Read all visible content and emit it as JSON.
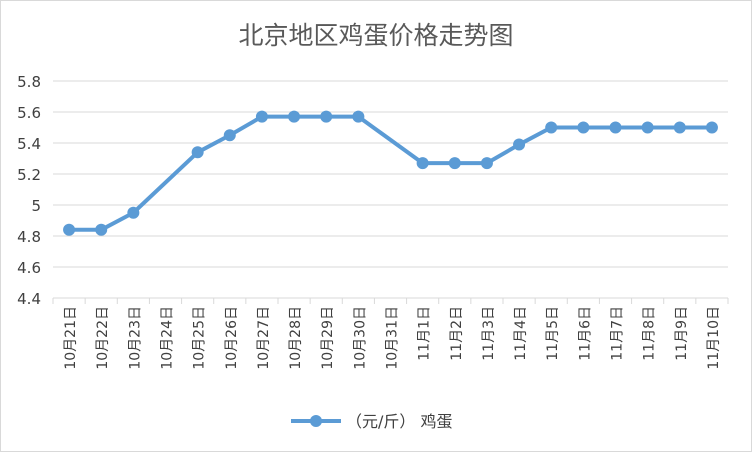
{
  "chart_data": {
    "type": "line",
    "title": "北京地区鸡蛋价格走势图",
    "xlabel": "",
    "ylabel": "",
    "ylim": [
      4.4,
      5.8
    ],
    "yticks": [
      "4.4",
      "4.6",
      "4.8",
      "5",
      "5.2",
      "5.4",
      "5.6",
      "5.8"
    ],
    "grid": true,
    "legend_position": "bottom",
    "categories": [
      "10月21日",
      "10月22日",
      "10月23日",
      "10月24日",
      "10月25日",
      "10月26日",
      "10月27日",
      "10月28日",
      "10月29日",
      "10月30日",
      "10月31日",
      "11月1日",
      "11月2日",
      "11月3日",
      "11月4日",
      "11月5日",
      "11月6日",
      "11月7日",
      "11月8日",
      "11月9日",
      "11月10日"
    ],
    "series": [
      {
        "name": "（元/斤） 鸡蛋",
        "color": "#5b9bd5",
        "values": [
          4.84,
          4.84,
          4.95,
          null,
          5.34,
          5.45,
          5.57,
          5.57,
          5.57,
          5.57,
          null,
          5.27,
          5.27,
          5.27,
          5.39,
          5.5,
          5.5,
          5.5,
          5.5,
          5.5,
          5.5
        ]
      }
    ]
  },
  "colors": {
    "grid": "#d9d9d9",
    "axis_text": "#404040",
    "title": "#595959"
  }
}
